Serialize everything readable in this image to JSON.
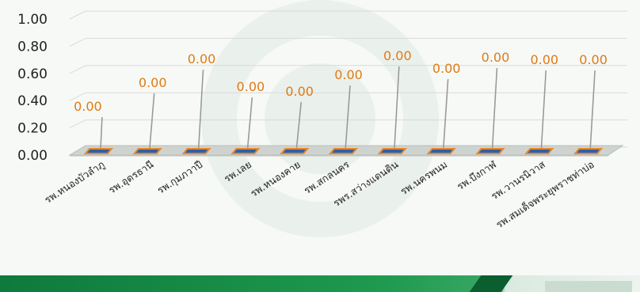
{
  "chart_data": {
    "type": "bar",
    "title": "",
    "xlabel": "",
    "ylabel": "",
    "ylim": [
      0,
      1
    ],
    "y_ticks": [
      "0.00",
      "0.20",
      "0.40",
      "0.60",
      "0.80",
      "1.00"
    ],
    "grid": true,
    "categories": [
      "รพ.หนองบัวลำภู",
      "รพ.อุดรธานี",
      "รพ.กุมภวาปี",
      "รพ.เลย",
      "รพ.หนองคาย",
      "รพ.สกลนคร",
      "รพร.สว่างแดนดิน",
      "รพ.นครพนม",
      "รพ.บึงกาฬ",
      "รพ.วานรนิวาส",
      "รพ.สมเด็จพระยุพราชท่าบ่อ"
    ],
    "values": [
      0,
      0,
      0,
      0,
      0,
      0,
      0,
      0,
      0,
      0,
      0
    ],
    "data_labels": [
      "0.00",
      "0.00",
      "0.00",
      "0.00",
      "0.00",
      "0.00",
      "0.00",
      "0.00",
      "0.00",
      "0.00",
      "0.00"
    ],
    "colors": {
      "bar_top": "#2f5fa8",
      "bar_edge": "#e8892a",
      "label": "#e07a12",
      "leader": "#9a9a9a",
      "axis_text": "#222222",
      "grid": "#d9d9d9"
    }
  }
}
